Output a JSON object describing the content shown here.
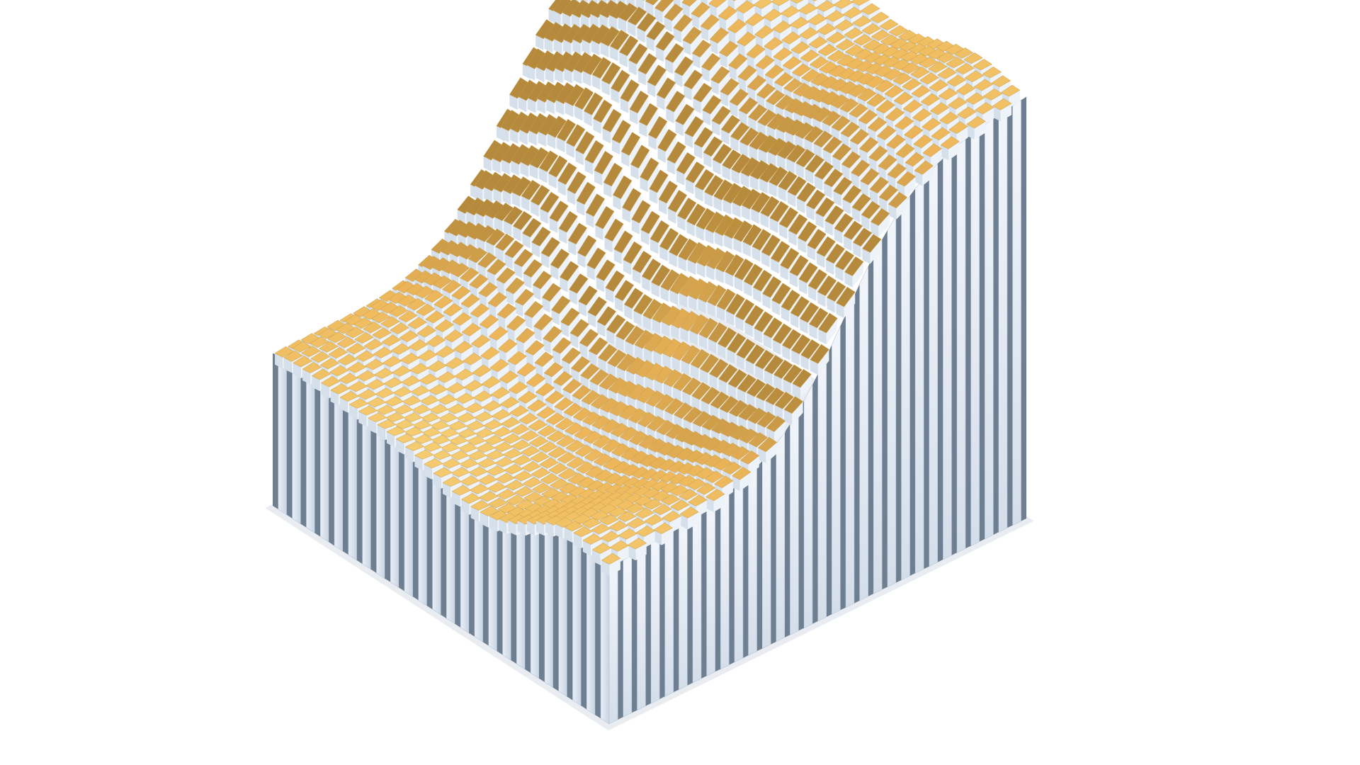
{
  "scene": {
    "subject": "corrugated-wave-sculpture",
    "colors": {
      "background": "#ffffff",
      "fin_light": "#eef3f9",
      "fin_mid": "#c6d3e2",
      "fin_shadow": "#6f7f92",
      "tile_bright": "#fff6c8",
      "tile_light": "#f8d277",
      "tile_mid": "#edb65a",
      "tile_dark": "#b68a3c"
    },
    "grid": {
      "columns": 36,
      "rows": 32
    }
  }
}
